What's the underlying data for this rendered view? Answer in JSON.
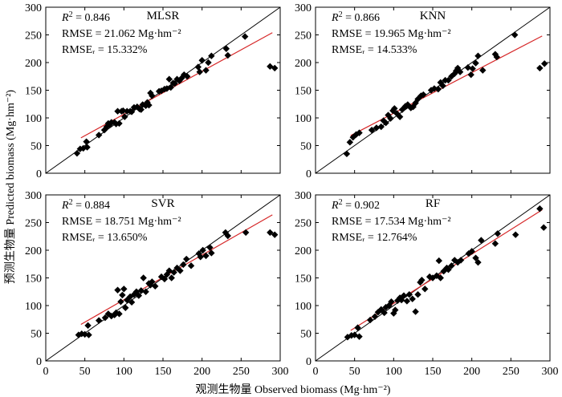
{
  "xlabel": "观测生物量 Observed biomass (Mg·hm⁻²)",
  "ylabel": "预测生物量 Predicted biomass (Mg·hm⁻²)",
  "chart_data": [
    {
      "type": "scatter",
      "title": "MLSR",
      "stats": [
        "0.846",
        "RMSE = 21.062 Mg·hm⁻²",
        "RMSEᵣ = 15.332%"
      ],
      "xlim": [
        0,
        300
      ],
      "ylim": [
        0,
        300
      ],
      "xticks": [
        0,
        50,
        100,
        150,
        200,
        250,
        300
      ],
      "yticks": [
        0,
        50,
        100,
        150,
        200,
        250,
        300
      ],
      "fit": [
        [
          45,
          64
        ],
        [
          290,
          254
        ]
      ],
      "points": [
        [
          40,
          36
        ],
        [
          44,
          44
        ],
        [
          48,
          45
        ],
        [
          52,
          57
        ],
        [
          53,
          47
        ],
        [
          68,
          69
        ],
        [
          75,
          78
        ],
        [
          78,
          84
        ],
        [
          80,
          90
        ],
        [
          82,
          88
        ],
        [
          84,
          92
        ],
        [
          88,
          92
        ],
        [
          90,
          89
        ],
        [
          92,
          112
        ],
        [
          94,
          90
        ],
        [
          97,
          112
        ],
        [
          99,
          113
        ],
        [
          101,
          102
        ],
        [
          104,
          112
        ],
        [
          108,
          112
        ],
        [
          110,
          111
        ],
        [
          113,
          119
        ],
        [
          117,
          120
        ],
        [
          120,
          116
        ],
        [
          122,
          115
        ],
        [
          124,
          124
        ],
        [
          128,
          122
        ],
        [
          130,
          128
        ],
        [
          132,
          123
        ],
        [
          134,
          145
        ],
        [
          136,
          140
        ],
        [
          145,
          148
        ],
        [
          148,
          149
        ],
        [
          152,
          152
        ],
        [
          155,
          153
        ],
        [
          158,
          170
        ],
        [
          160,
          155
        ],
        [
          163,
          163
        ],
        [
          165,
          162
        ],
        [
          168,
          170
        ],
        [
          171,
          167
        ],
        [
          174,
          172
        ],
        [
          177,
          178
        ],
        [
          181,
          175
        ],
        [
          195,
          192
        ],
        [
          197,
          183
        ],
        [
          200,
          204
        ],
        [
          205,
          186
        ],
        [
          208,
          200
        ],
        [
          212,
          212
        ],
        [
          231,
          225
        ],
        [
          233,
          213
        ],
        [
          255,
          247
        ],
        [
          287,
          193
        ],
        [
          293,
          190
        ]
      ]
    },
    {
      "type": "scatter",
      "title": "KNN",
      "stats": [
        "0.866",
        "RMSE = 19.965 Mg·hm⁻²",
        "RMSEᵣ = 14.533%"
      ],
      "xlim": [
        0,
        300
      ],
      "ylim": [
        0,
        300
      ],
      "xticks": [
        0,
        50,
        100,
        150,
        200,
        250,
        300
      ],
      "yticks": [
        0,
        50,
        100,
        150,
        200,
        250,
        300
      ],
      "fit": [
        [
          45,
          68
        ],
        [
          290,
          248
        ]
      ],
      "points": [
        [
          40,
          35
        ],
        [
          44,
          56
        ],
        [
          48,
          65
        ],
        [
          52,
          70
        ],
        [
          56,
          73
        ],
        [
          72,
          78
        ],
        [
          78,
          82
        ],
        [
          84,
          84
        ],
        [
          87,
          95
        ],
        [
          90,
          91
        ],
        [
          93,
          105
        ],
        [
          96,
          99
        ],
        [
          99,
          113
        ],
        [
          101,
          117
        ],
        [
          104,
          108
        ],
        [
          108,
          102
        ],
        [
          111,
          115
        ],
        [
          115,
          121
        ],
        [
          118,
          124
        ],
        [
          122,
          118
        ],
        [
          125,
          120
        ],
        [
          128,
          127
        ],
        [
          131,
          134
        ],
        [
          135,
          140
        ],
        [
          138,
          142
        ],
        [
          148,
          150
        ],
        [
          152,
          153
        ],
        [
          157,
          152
        ],
        [
          160,
          164
        ],
        [
          163,
          158
        ],
        [
          166,
          168
        ],
        [
          170,
          168
        ],
        [
          174,
          175
        ],
        [
          178,
          180
        ],
        [
          180,
          185
        ],
        [
          182,
          190
        ],
        [
          185,
          183
        ],
        [
          195,
          191
        ],
        [
          199,
          178
        ],
        [
          201,
          189
        ],
        [
          205,
          199
        ],
        [
          208,
          212
        ],
        [
          214,
          186
        ],
        [
          230,
          215
        ],
        [
          232,
          210
        ],
        [
          255,
          250
        ],
        [
          287,
          190
        ],
        [
          293,
          198
        ]
      ]
    },
    {
      "type": "scatter",
      "title": "SVR",
      "stats": [
        "0.884",
        "RMSE = 18.751 Mg·hm⁻²",
        "RMSEᵣ = 13.650%"
      ],
      "xlim": [
        0,
        300
      ],
      "ylim": [
        0,
        300
      ],
      "xticks": [
        0,
        50,
        100,
        150,
        200,
        250,
        300
      ],
      "yticks": [
        0,
        50,
        100,
        150,
        200,
        250,
        300
      ],
      "fit": [
        [
          45,
          66
        ],
        [
          290,
          264
        ]
      ],
      "points": [
        [
          42,
          47
        ],
        [
          46,
          49
        ],
        [
          50,
          48
        ],
        [
          54,
          64
        ],
        [
          55,
          47
        ],
        [
          68,
          73
        ],
        [
          76,
          78
        ],
        [
          80,
          85
        ],
        [
          84,
          81
        ],
        [
          88,
          83
        ],
        [
          90,
          87
        ],
        [
          92,
          128
        ],
        [
          94,
          85
        ],
        [
          96,
          107
        ],
        [
          98,
          119
        ],
        [
          100,
          130
        ],
        [
          102,
          96
        ],
        [
          104,
          110
        ],
        [
          108,
          116
        ],
        [
          110,
          106
        ],
        [
          113,
          120
        ],
        [
          116,
          125
        ],
        [
          119,
          118
        ],
        [
          122,
          127
        ],
        [
          125,
          150
        ],
        [
          128,
          125
        ],
        [
          132,
          140
        ],
        [
          134,
          137
        ],
        [
          136,
          143
        ],
        [
          140,
          135
        ],
        [
          148,
          152
        ],
        [
          152,
          148
        ],
        [
          155,
          156
        ],
        [
          158,
          163
        ],
        [
          161,
          150
        ],
        [
          164,
          160
        ],
        [
          168,
          168
        ],
        [
          172,
          163
        ],
        [
          176,
          174
        ],
        [
          180,
          184
        ],
        [
          186,
          172
        ],
        [
          196,
          194
        ],
        [
          198,
          188
        ],
        [
          201,
          200
        ],
        [
          205,
          190
        ],
        [
          210,
          205
        ],
        [
          212,
          195
        ],
        [
          230,
          232
        ],
        [
          233,
          226
        ],
        [
          256,
          232
        ],
        [
          287,
          232
        ],
        [
          293,
          228
        ]
      ]
    },
    {
      "type": "scatter",
      "title": "RF",
      "stats": [
        "0.902",
        "RMSE = 17.534 Mg·hm⁻²",
        "RMSEᵣ = 12.764%"
      ],
      "xlim": [
        0,
        300
      ],
      "ylim": [
        0,
        300
      ],
      "xticks": [
        0,
        50,
        100,
        150,
        200,
        250,
        300
      ],
      "yticks": [
        0,
        50,
        100,
        150,
        200,
        250,
        300
      ],
      "fit": [
        [
          45,
          55
        ],
        [
          290,
          273
        ]
      ],
      "points": [
        [
          41,
          43
        ],
        [
          46,
          46
        ],
        [
          50,
          47
        ],
        [
          54,
          60
        ],
        [
          56,
          44
        ],
        [
          70,
          74
        ],
        [
          76,
          80
        ],
        [
          80,
          88
        ],
        [
          84,
          93
        ],
        [
          88,
          87
        ],
        [
          90,
          97
        ],
        [
          94,
          100
        ],
        [
          97,
          107
        ],
        [
          100,
          86
        ],
        [
          102,
          92
        ],
        [
          105,
          109
        ],
        [
          108,
          114
        ],
        [
          110,
          110
        ],
        [
          113,
          118
        ],
        [
          117,
          108
        ],
        [
          120,
          120
        ],
        [
          124,
          112
        ],
        [
          128,
          89
        ],
        [
          131,
          120
        ],
        [
          134,
          142
        ],
        [
          136,
          146
        ],
        [
          140,
          130
        ],
        [
          146,
          152
        ],
        [
          150,
          150
        ],
        [
          155,
          154
        ],
        [
          158,
          181
        ],
        [
          160,
          150
        ],
        [
          164,
          162
        ],
        [
          168,
          168
        ],
        [
          170,
          165
        ],
        [
          174,
          172
        ],
        [
          178,
          182
        ],
        [
          182,
          178
        ],
        [
          186,
          182
        ],
        [
          196,
          194
        ],
        [
          200,
          198
        ],
        [
          205,
          186
        ],
        [
          208,
          178
        ],
        [
          212,
          218
        ],
        [
          230,
          212
        ],
        [
          233,
          230
        ],
        [
          256,
          228
        ],
        [
          287,
          275
        ],
        [
          292,
          241
        ]
      ]
    }
  ]
}
